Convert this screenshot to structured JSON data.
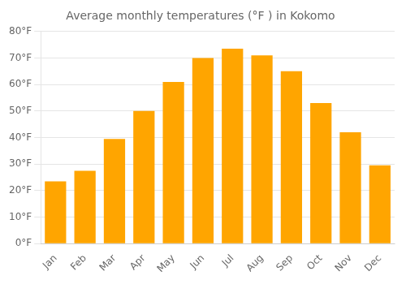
{
  "chart_data": {
    "type": "bar",
    "title": "Average monthly temperatures (°F ) in Kokomo",
    "categories": [
      "Jan",
      "Feb",
      "Mar",
      "Apr",
      "May",
      "Jun",
      "Jul",
      "Aug",
      "Sep",
      "Oct",
      "Nov",
      "Dec"
    ],
    "values": [
      23.5,
      27.5,
      39.5,
      50.0,
      61.0,
      70.0,
      73.5,
      71.0,
      65.0,
      53.0,
      42.0,
      29.5
    ],
    "color": "#FFA500",
    "ylim": [
      0,
      80
    ],
    "yticks": [
      {
        "value": 0,
        "label": "0°F"
      },
      {
        "value": 10,
        "label": "10°F"
      },
      {
        "value": 20,
        "label": "20°F"
      },
      {
        "value": 30,
        "label": "30°F"
      },
      {
        "value": 40,
        "label": "40°F"
      },
      {
        "value": 50,
        "label": "50°F"
      },
      {
        "value": 60,
        "label": "60°F"
      },
      {
        "value": 70,
        "label": "70°F"
      },
      {
        "value": 80,
        "label": "80°F"
      }
    ],
    "grid": true
  }
}
